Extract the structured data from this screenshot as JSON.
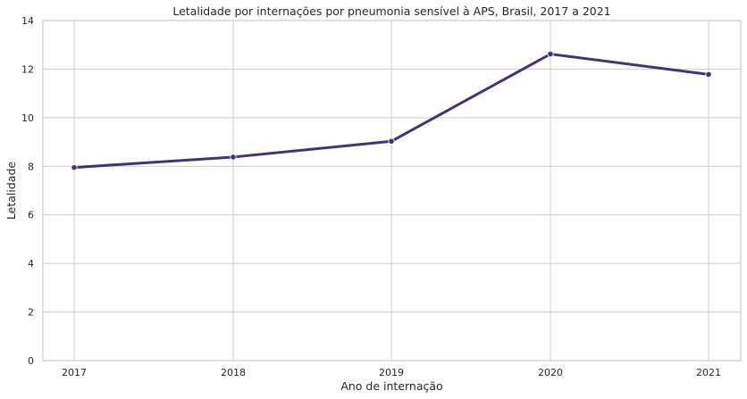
{
  "chart_data": {
    "type": "line",
    "title": "Letalidade por internações por pneumonia sensível à APS, Brasil, 2017 a 2021",
    "xlabel": "Ano de internação",
    "ylabel": "Letalidade",
    "x": [
      "2017",
      "2018",
      "2019",
      "2020",
      "2021"
    ],
    "series": [
      {
        "values": [
          7.95,
          8.38,
          9.03,
          12.62,
          11.78
        ],
        "color": "#45307a"
      }
    ],
    "ylim": [
      0,
      14
    ],
    "yticks": [
      "0",
      "2",
      "4",
      "6",
      "8",
      "10",
      "12",
      "14"
    ],
    "grid": true,
    "legend": "none"
  }
}
